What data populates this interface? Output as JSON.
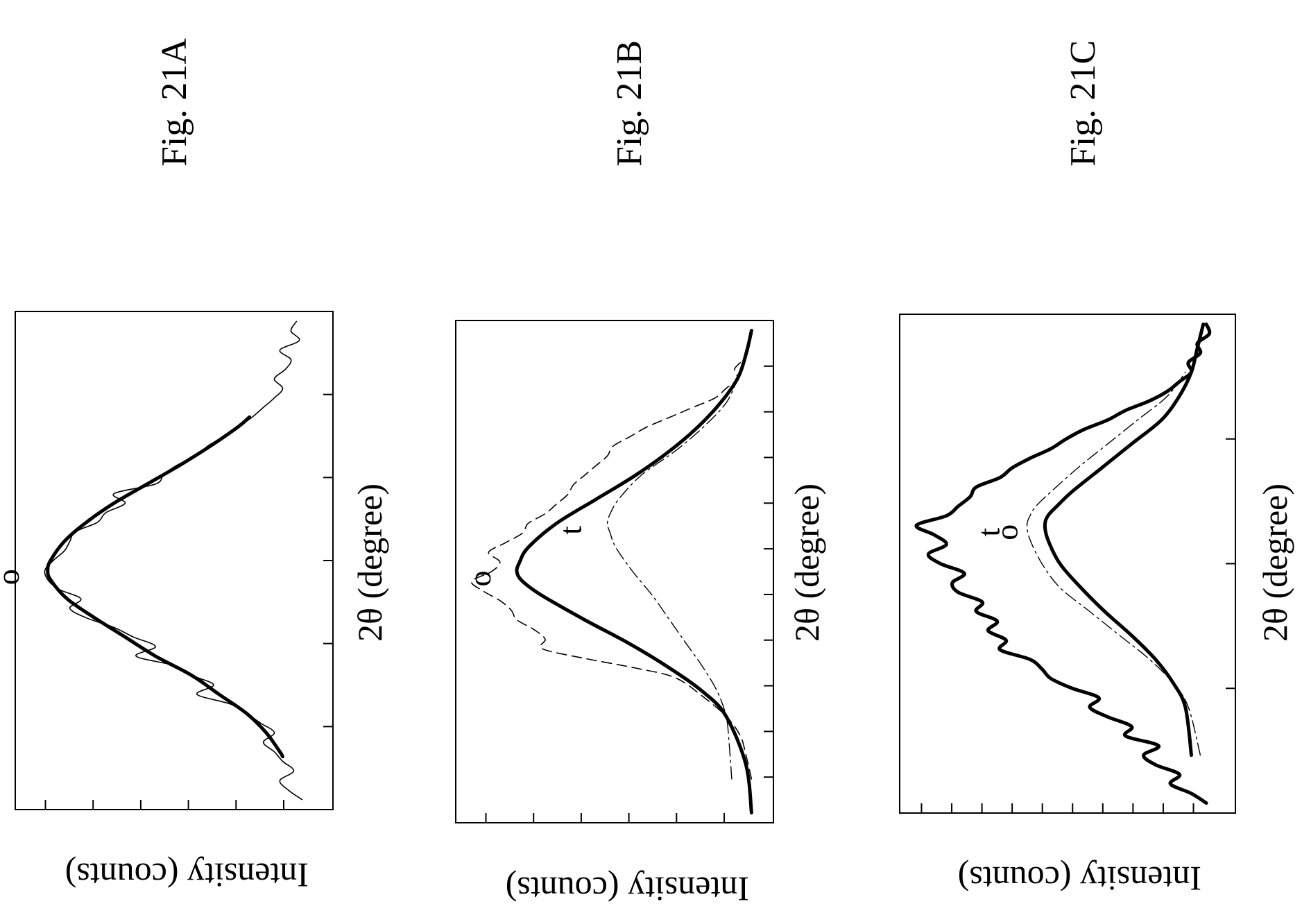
{
  "figures": [
    {
      "label": "Fig. 21A",
      "ylabel": "Intensity (counts)",
      "xlabel": "2θ (degree)",
      "x_ticks": 5,
      "y_ticks": 6,
      "curve_labels": [
        {
          "text": "o",
          "series": "o_fit"
        }
      ],
      "series": [
        {
          "name": "raw",
          "style": "thin",
          "x": [
            0.0,
            0.02,
            0.04,
            0.06,
            0.08,
            0.1,
            0.12,
            0.14,
            0.16,
            0.18,
            0.2,
            0.22,
            0.24,
            0.26,
            0.28,
            0.3,
            0.32,
            0.34,
            0.36,
            0.38,
            0.4,
            0.42,
            0.44,
            0.46,
            0.48,
            0.5,
            0.52,
            0.54,
            0.56,
            0.58,
            0.6,
            0.62,
            0.64,
            0.66,
            0.68,
            0.7,
            0.72,
            0.74,
            0.76,
            0.78,
            0.8,
            0.82,
            0.84,
            0.86,
            0.88,
            0.9,
            0.92,
            0.94,
            0.96,
            0.98,
            1.0
          ],
          "y": [
            0.02,
            0.07,
            0.1,
            0.05,
            0.09,
            0.12,
            0.16,
            0.12,
            0.17,
            0.22,
            0.28,
            0.4,
            0.34,
            0.42,
            0.48,
            0.62,
            0.55,
            0.63,
            0.7,
            0.8,
            0.86,
            0.82,
            0.9,
            0.94,
            0.95,
            0.92,
            0.88,
            0.86,
            0.84,
            0.76,
            0.73,
            0.66,
            0.7,
            0.55,
            0.52,
            0.47,
            0.4,
            0.36,
            0.3,
            0.25,
            0.2,
            0.16,
            0.12,
            0.09,
            0.12,
            0.08,
            0.06,
            0.1,
            0.03,
            0.06,
            0.04
          ]
        },
        {
          "name": "o_fit",
          "style": "thick",
          "x": [
            0.09,
            0.1,
            0.14,
            0.18,
            0.22,
            0.26,
            0.3,
            0.34,
            0.38,
            0.42,
            0.46,
            0.48,
            0.5,
            0.54,
            0.58,
            0.62,
            0.66,
            0.7,
            0.74,
            0.78,
            0.8
          ],
          "y": [
            0.09,
            0.1,
            0.15,
            0.22,
            0.32,
            0.42,
            0.55,
            0.66,
            0.77,
            0.87,
            0.93,
            0.94,
            0.93,
            0.88,
            0.8,
            0.7,
            0.58,
            0.46,
            0.35,
            0.25,
            0.21
          ]
        }
      ]
    },
    {
      "label": "Fig. 21B",
      "ylabel": "Intensity (counts)",
      "xlabel": "2θ (degree)",
      "x_ticks": 10,
      "y_ticks": 6,
      "curve_labels": [
        {
          "text": "o",
          "series": "o_fit"
        },
        {
          "text": "t",
          "series": "t_fit"
        }
      ],
      "series": [
        {
          "name": "raw",
          "style": "dashed",
          "x": [
            0.07,
            0.12,
            0.16,
            0.2,
            0.24,
            0.28,
            0.3,
            0.32,
            0.34,
            0.36,
            0.38,
            0.4,
            0.42,
            0.44,
            0.46,
            0.48,
            0.5,
            0.52,
            0.54,
            0.56,
            0.58,
            0.6,
            0.62,
            0.64,
            0.66,
            0.68,
            0.7,
            0.72,
            0.74,
            0.76,
            0.78,
            0.8,
            0.82,
            0.84,
            0.86,
            0.88,
            0.9,
            0.92,
            0.94,
            0.96,
            0.98,
            1.0
          ],
          "y": [
            0.01,
            0.03,
            0.05,
            0.1,
            0.18,
            0.28,
            0.42,
            0.6,
            0.75,
            0.74,
            0.78,
            0.84,
            0.86,
            0.9,
            0.96,
            1.0,
            0.93,
            0.9,
            0.94,
            0.88,
            0.82,
            0.8,
            0.74,
            0.7,
            0.66,
            0.64,
            0.6,
            0.56,
            0.52,
            0.5,
            0.44,
            0.38,
            0.3,
            0.22,
            0.14,
            0.1,
            0.06,
            0.07,
            0.04,
            0.03,
            0.02,
            0.01
          ]
        },
        {
          "name": "o_fit",
          "style": "thick",
          "x": [
            0.0,
            0.1,
            0.2,
            0.25,
            0.3,
            0.35,
            0.4,
            0.45,
            0.48,
            0.5,
            0.52,
            0.55,
            0.6,
            0.65,
            0.7,
            0.75,
            0.8,
            0.85,
            0.9,
            0.95,
            1.0
          ],
          "y": [
            0.01,
            0.03,
            0.1,
            0.18,
            0.3,
            0.44,
            0.6,
            0.75,
            0.82,
            0.84,
            0.83,
            0.8,
            0.7,
            0.56,
            0.42,
            0.3,
            0.2,
            0.12,
            0.06,
            0.03,
            0.01
          ]
        },
        {
          "name": "t_fit",
          "style": "dashdot",
          "x": [
            0.07,
            0.15,
            0.2,
            0.25,
            0.3,
            0.35,
            0.4,
            0.45,
            0.5,
            0.55,
            0.58,
            0.6,
            0.62,
            0.65,
            0.7,
            0.75,
            0.8,
            0.85,
            0.9,
            0.95,
            1.0
          ],
          "y": [
            0.08,
            0.09,
            0.1,
            0.13,
            0.18,
            0.24,
            0.3,
            0.36,
            0.43,
            0.49,
            0.51,
            0.52,
            0.51,
            0.48,
            0.4,
            0.28,
            0.18,
            0.1,
            0.06,
            0.03,
            0.01
          ]
        }
      ]
    },
    {
      "label": "Fig. 21C",
      "ylabel": "Intensity (counts)",
      "xlabel": "2θ (degree)",
      "x_ticks": 3,
      "y_ticks": 10,
      "curve_labels": [
        {
          "text": "t",
          "series": "t_fit"
        },
        {
          "text": "o",
          "series": "o_fit"
        }
      ],
      "series": [
        {
          "name": "raw",
          "style": "thick",
          "x": [
            0.0,
            0.02,
            0.04,
            0.06,
            0.08,
            0.1,
            0.12,
            0.14,
            0.16,
            0.18,
            0.2,
            0.22,
            0.24,
            0.26,
            0.28,
            0.3,
            0.32,
            0.34,
            0.36,
            0.38,
            0.4,
            0.42,
            0.44,
            0.46,
            0.48,
            0.5,
            0.52,
            0.54,
            0.56,
            0.58,
            0.6,
            0.62,
            0.64,
            0.66,
            0.68,
            0.7,
            0.72,
            0.74,
            0.76,
            0.78,
            0.8,
            0.82,
            0.84,
            0.86,
            0.88,
            0.9,
            0.92,
            0.94,
            0.96,
            0.98,
            1.0
          ],
          "y": [
            0.03,
            0.08,
            0.15,
            0.12,
            0.2,
            0.24,
            0.19,
            0.3,
            0.28,
            0.36,
            0.42,
            0.39,
            0.48,
            0.55,
            0.58,
            0.62,
            0.72,
            0.7,
            0.76,
            0.73,
            0.8,
            0.78,
            0.86,
            0.88,
            0.84,
            0.92,
            0.96,
            0.9,
            0.94,
            1.0,
            0.9,
            0.86,
            0.82,
            0.8,
            0.72,
            0.68,
            0.62,
            0.55,
            0.5,
            0.44,
            0.36,
            0.3,
            0.22,
            0.16,
            0.12,
            0.08,
            0.09,
            0.05,
            0.06,
            0.02,
            0.03
          ]
        },
        {
          "name": "o_fit",
          "style": "thick",
          "x": [
            0.1,
            0.2,
            0.25,
            0.3,
            0.35,
            0.4,
            0.45,
            0.5,
            0.55,
            0.58,
            0.6,
            0.62,
            0.65,
            0.7,
            0.75,
            0.8,
            0.85,
            0.9,
            0.95,
            1.0
          ],
          "y": [
            0.08,
            0.1,
            0.14,
            0.2,
            0.28,
            0.37,
            0.45,
            0.52,
            0.56,
            0.57,
            0.56,
            0.53,
            0.48,
            0.38,
            0.28,
            0.18,
            0.12,
            0.08,
            0.06,
            0.04
          ]
        },
        {
          "name": "t_fit",
          "style": "dashdot",
          "x": [
            0.1,
            0.2,
            0.25,
            0.3,
            0.35,
            0.4,
            0.45,
            0.5,
            0.55,
            0.58,
            0.6,
            0.62,
            0.65,
            0.7,
            0.75,
            0.8,
            0.85,
            0.9
          ],
          "y": [
            0.05,
            0.09,
            0.14,
            0.22,
            0.32,
            0.42,
            0.52,
            0.58,
            0.62,
            0.63,
            0.62,
            0.6,
            0.55,
            0.46,
            0.36,
            0.26,
            0.16,
            0.1
          ]
        }
      ]
    }
  ]
}
